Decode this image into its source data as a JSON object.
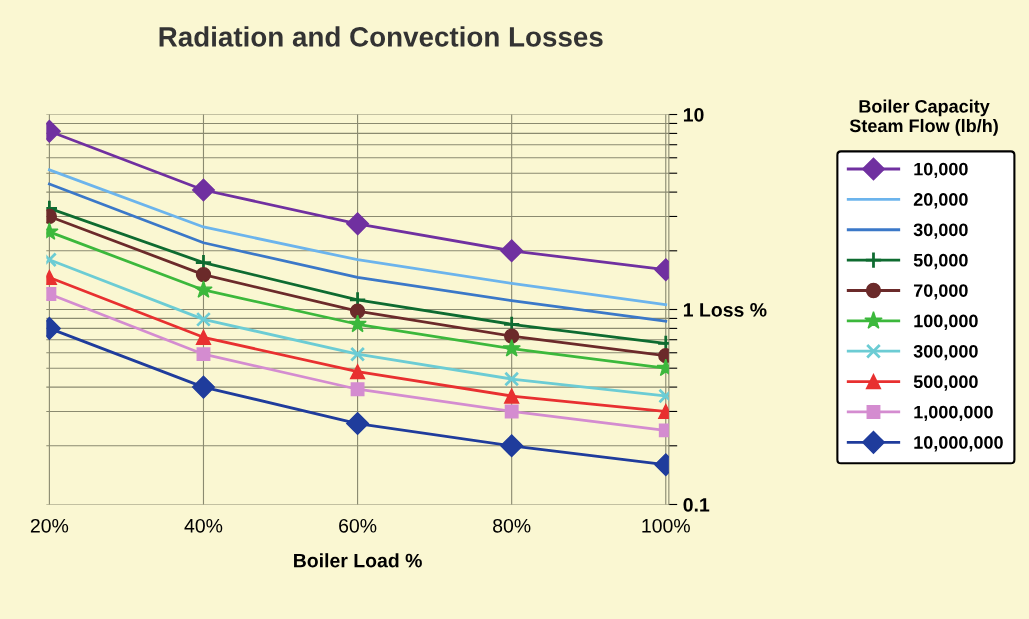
{
  "chart_data": {
    "type": "line",
    "title": "Radiation and Convection Losses",
    "xlabel": "Boiler Load %",
    "legend_title": "Boiler Capacity\nSteam Flow (lb/h)",
    "categories": [
      "20%",
      "40%",
      "60%",
      "80%",
      "100%"
    ],
    "log": true,
    "ylim": [
      0.1,
      10
    ],
    "yticks": [
      {
        "value": 0.1,
        "label": "0.1"
      },
      {
        "value": 0.2,
        "label": null
      },
      {
        "value": 0.3,
        "label": null
      },
      {
        "value": 0.4,
        "label": null
      },
      {
        "value": 0.5,
        "label": null
      },
      {
        "value": 0.6,
        "label": null
      },
      {
        "value": 0.7,
        "label": null
      },
      {
        "value": 0.8,
        "label": null
      },
      {
        "value": 0.9,
        "label": null
      },
      {
        "value": 1,
        "label": "1 Loss %"
      },
      {
        "value": 2,
        "label": null
      },
      {
        "value": 3,
        "label": null
      },
      {
        "value": 4,
        "label": null
      },
      {
        "value": 5,
        "label": null
      },
      {
        "value": 6,
        "label": null
      },
      {
        "value": 7,
        "label": null
      },
      {
        "value": 8,
        "label": null
      },
      {
        "value": 9,
        "label": null
      },
      {
        "value": 10,
        "label": "10"
      }
    ],
    "grid": true,
    "legend": "right",
    "line_style": "solid",
    "series": [
      {
        "name": "10,000",
        "color": "#7030a0",
        "marker": "diamond",
        "values": [
          8.2,
          4.1,
          2.75,
          2.0,
          1.6
        ]
      },
      {
        "name": "20,000",
        "color": "#6cb4ec",
        "marker": "none",
        "values": [
          5.2,
          2.65,
          1.8,
          1.36,
          1.06
        ]
      },
      {
        "name": "30,000",
        "color": "#3b78c8",
        "marker": "none",
        "values": [
          4.4,
          2.2,
          1.46,
          1.11,
          0.87
        ]
      },
      {
        "name": "50,000",
        "color": "#0e6b30",
        "marker": "plus",
        "values": [
          3.3,
          1.74,
          1.12,
          0.84,
          0.67
        ]
      },
      {
        "name": "70,000",
        "color": "#6b2a2a",
        "marker": "circle",
        "values": [
          3.0,
          1.51,
          0.98,
          0.73,
          0.58
        ]
      },
      {
        "name": "100,000",
        "color": "#3cb83c",
        "marker": "star",
        "values": [
          2.5,
          1.26,
          0.84,
          0.63,
          0.5
        ]
      },
      {
        "name": "300,000",
        "color": "#6cccd4",
        "marker": "cross",
        "values": [
          1.8,
          0.89,
          0.59,
          0.44,
          0.36
        ]
      },
      {
        "name": "500,000",
        "color": "#e83030",
        "marker": "triangle",
        "values": [
          1.46,
          0.72,
          0.48,
          0.36,
          0.3
        ]
      },
      {
        "name": "1,000,000",
        "color": "#d48cd0",
        "marker": "square",
        "values": [
          1.2,
          0.59,
          0.39,
          0.3,
          0.24
        ]
      },
      {
        "name": "10,000,000",
        "color": "#1f3c9c",
        "marker": "diamond",
        "values": [
          0.8,
          0.4,
          0.26,
          0.2,
          0.16
        ]
      }
    ]
  }
}
